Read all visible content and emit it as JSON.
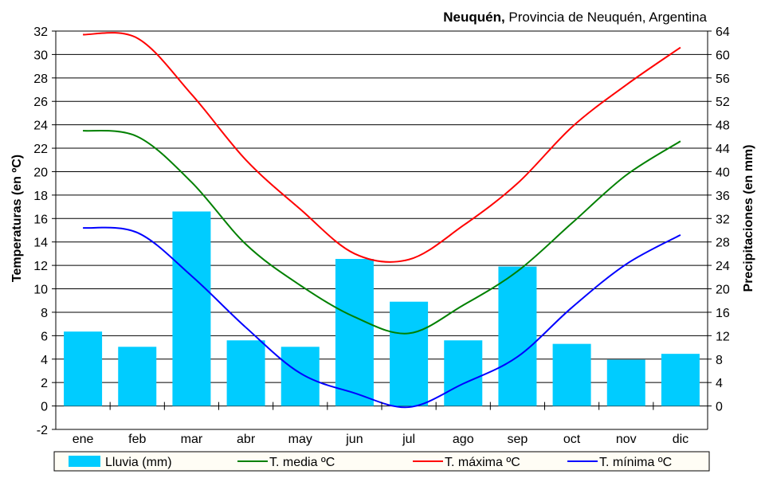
{
  "chart_data": {
    "type": "bar+line",
    "title_bold": "Neuquén,",
    "title_rest": " Provincia de Neuquén, Argentina",
    "ylabel_left": "Temperaturas (en ºC)",
    "ylabel_right": "Precipitaciones (en mm)",
    "categories": [
      "ene",
      "feb",
      "mar",
      "abr",
      "may",
      "jun",
      "jul",
      "ago",
      "sep",
      "oct",
      "nov",
      "dic"
    ],
    "ylim_left": [
      -2,
      32
    ],
    "left_ticks": [
      -2,
      0,
      2,
      4,
      6,
      8,
      10,
      12,
      14,
      16,
      18,
      20,
      22,
      24,
      26,
      28,
      30,
      32
    ],
    "ylim_right": [
      -4,
      64
    ],
    "right_ticks": [
      0,
      4,
      8,
      12,
      16,
      20,
      24,
      28,
      32,
      36,
      40,
      44,
      48,
      52,
      56,
      60,
      64
    ],
    "grid": true,
    "legend_position": "bottom",
    "bars": {
      "name": "Lluvia (mm)",
      "color": "#00ccff",
      "values": [
        12.7,
        10.1,
        33.2,
        11.2,
        10.1,
        25.1,
        17.8,
        11.2,
        23.8,
        10.6,
        7.9,
        8.9
      ]
    },
    "series": [
      {
        "name": "T. media ºC",
        "color": "#008000",
        "values": [
          23.5,
          23.0,
          19.1,
          13.8,
          10.3,
          7.6,
          6.2,
          8.6,
          11.5,
          15.6,
          19.7,
          22.6
        ]
      },
      {
        "name": "T. máxima ºC",
        "color": "#ff0000",
        "values": [
          31.7,
          31.4,
          26.6,
          21.0,
          16.8,
          13.0,
          12.5,
          15.4,
          19.0,
          23.8,
          27.4,
          30.6
        ]
      },
      {
        "name": "T. mínima ºC",
        "color": "#0000ff",
        "values": [
          15.2,
          14.8,
          11.1,
          6.7,
          2.8,
          1.1,
          -0.1,
          1.9,
          4.2,
          8.4,
          12.1,
          14.6
        ]
      }
    ]
  }
}
